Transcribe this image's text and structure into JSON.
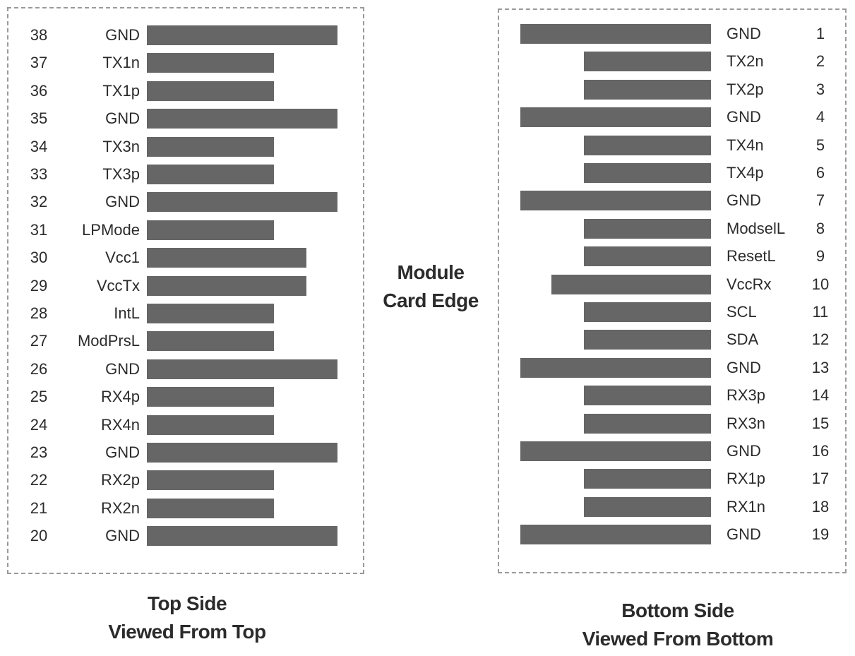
{
  "center_caption": {
    "line1": "Module",
    "line2": "Card Edge"
  },
  "top_side": {
    "caption_line1": "Top Side",
    "caption_line2": "Viewed From Top",
    "pins": [
      {
        "num": "38",
        "label": "GND",
        "length": "long"
      },
      {
        "num": "37",
        "label": "TX1n",
        "length": "short"
      },
      {
        "num": "36",
        "label": "TX1p",
        "length": "short"
      },
      {
        "num": "35",
        "label": "GND",
        "length": "long"
      },
      {
        "num": "34",
        "label": "TX3n",
        "length": "short"
      },
      {
        "num": "33",
        "label": "TX3p",
        "length": "short"
      },
      {
        "num": "32",
        "label": "GND",
        "length": "long"
      },
      {
        "num": "31",
        "label": "LPMode",
        "length": "short"
      },
      {
        "num": "30",
        "label": "Vcc1",
        "length": "medium"
      },
      {
        "num": "29",
        "label": "VccTx",
        "length": "medium"
      },
      {
        "num": "28",
        "label": "IntL",
        "length": "short"
      },
      {
        "num": "27",
        "label": "ModPrsL",
        "length": "short"
      },
      {
        "num": "26",
        "label": "GND",
        "length": "long"
      },
      {
        "num": "25",
        "label": "RX4p",
        "length": "short"
      },
      {
        "num": "24",
        "label": "RX4n",
        "length": "short"
      },
      {
        "num": "23",
        "label": "GND",
        "length": "long"
      },
      {
        "num": "22",
        "label": "RX2p",
        "length": "short"
      },
      {
        "num": "21",
        "label": "RX2n",
        "length": "short"
      },
      {
        "num": "20",
        "label": "GND",
        "length": "long"
      }
    ]
  },
  "bottom_side": {
    "caption_line1": "Bottom Side",
    "caption_line2": "Viewed From Bottom",
    "pins": [
      {
        "num": "1",
        "label": "GND",
        "length": "long"
      },
      {
        "num": "2",
        "label": "TX2n",
        "length": "short"
      },
      {
        "num": "3",
        "label": "TX2p",
        "length": "short"
      },
      {
        "num": "4",
        "label": "GND",
        "length": "long"
      },
      {
        "num": "5",
        "label": "TX4n",
        "length": "short"
      },
      {
        "num": "6",
        "label": "TX4p",
        "length": "short"
      },
      {
        "num": "7",
        "label": "GND",
        "length": "long"
      },
      {
        "num": "8",
        "label": "ModselL",
        "length": "short"
      },
      {
        "num": "9",
        "label": "ResetL",
        "length": "short"
      },
      {
        "num": "10",
        "label": "VccRx",
        "length": "medium"
      },
      {
        "num": "11",
        "label": "SCL",
        "length": "short"
      },
      {
        "num": "12",
        "label": "SDA",
        "length": "short"
      },
      {
        "num": "13",
        "label": "GND",
        "length": "long"
      },
      {
        "num": "14",
        "label": "RX3p",
        "length": "short"
      },
      {
        "num": "15",
        "label": "RX3n",
        "length": "short"
      },
      {
        "num": "16",
        "label": "GND",
        "length": "long"
      },
      {
        "num": "17",
        "label": "RX1p",
        "length": "short"
      },
      {
        "num": "18",
        "label": "RX1n",
        "length": "short"
      },
      {
        "num": "19",
        "label": "GND",
        "length": "long"
      }
    ]
  },
  "colors": {
    "pad": "#666666",
    "border": "#9a9a9a",
    "text": "#2b2b2b"
  }
}
